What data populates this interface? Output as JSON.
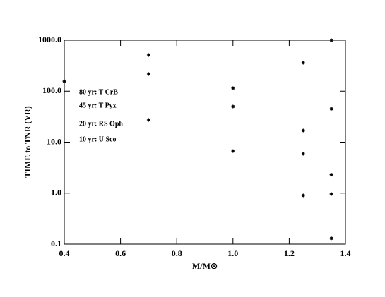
{
  "chart_data": {
    "type": "scatter",
    "xlabel": "M/M⊙",
    "ylabel": "TIME to TNR (YR)",
    "x": [
      0.4,
      0.7,
      0.7,
      0.7,
      1.0,
      1.0,
      1.0,
      1.25,
      1.25,
      1.25,
      1.25,
      1.35,
      1.35,
      1.35,
      1.35,
      1.35
    ],
    "values": [
      157,
      513,
      217,
      27.3,
      115,
      50,
      6.7,
      361,
      16.9,
      5.9,
      0.9,
      1000,
      45,
      2.3,
      0.96,
      0.13
    ],
    "color": "#000000",
    "xlim": [
      0.4,
      1.4
    ],
    "xticks": [
      0.4,
      0.6,
      0.8,
      {
        "value": 1,
        "label": "1.0"
      },
      1.2,
      1.4
    ],
    "ylim": [
      0.1,
      1000
    ],
    "log_y": true,
    "yticks": [
      0.1,
      {
        "value": 1,
        "label": "1.0"
      },
      {
        "value": 10,
        "label": "10.0"
      },
      {
        "value": 100,
        "label": "100.0"
      },
      {
        "value": 1000,
        "label": "1000.0"
      }
    ],
    "annotations": [
      "80 yr: T CrB",
      "45 yr: T Pyx",
      "20 yr: RS Oph",
      "10 yr: U Sco"
    ]
  }
}
